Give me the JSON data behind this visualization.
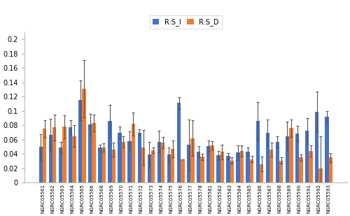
{
  "categories": [
    "NGRC05561",
    "NGRC05562",
    "NGRC05563",
    "NGRC05564",
    "NGRC05565",
    "NGRC05566",
    "NGRC05568",
    "NGRC05569",
    "NGRC05570",
    "NGRC05571",
    "NGRC05572",
    "NGRC05573",
    "NGRC05574",
    "NGRC05575",
    "NGRC05576",
    "NGRC05577",
    "NGRC05578",
    "NGRC05581",
    "NGRC05582",
    "NGRC05583",
    "NGRC05584",
    "NGRC05585",
    "NGRC05586",
    "NGRC05587",
    "NGRC05588",
    "NGRC05589",
    "NGRC05590",
    "NGRC05591",
    "NGRC05592",
    "NGRC05593"
  ],
  "RS_I": [
    0.05,
    0.067,
    0.049,
    0.077,
    0.115,
    0.081,
    0.049,
    0.086,
    0.07,
    0.058,
    0.07,
    0.039,
    0.057,
    0.039,
    0.111,
    0.053,
    0.043,
    0.051,
    0.038,
    0.037,
    0.042,
    0.043,
    0.086,
    0.07,
    0.057,
    0.065,
    0.069,
    0.072,
    0.099,
    0.092
  ],
  "RS_D": [
    0.075,
    0.077,
    0.078,
    0.065,
    0.131,
    0.083,
    0.049,
    0.046,
    0.057,
    0.082,
    0.049,
    0.045,
    0.056,
    0.047,
    0.033,
    0.062,
    0.036,
    0.052,
    0.043,
    0.031,
    0.044,
    0.033,
    0.026,
    0.046,
    0.031,
    0.076,
    0.035,
    0.044,
    0.02,
    0.035
  ],
  "RS_I_err": [
    0.018,
    0.022,
    0.008,
    0.01,
    0.028,
    0.015,
    0.004,
    0.022,
    0.008,
    0.013,
    0.004,
    0.018,
    0.015,
    0.01,
    0.008,
    0.035,
    0.008,
    0.008,
    0.006,
    0.004,
    0.01,
    0.006,
    0.026,
    0.018,
    0.008,
    0.02,
    0.01,
    0.018,
    0.028,
    0.008
  ],
  "RS_D_err": [
    0.012,
    0.018,
    0.016,
    0.015,
    0.04,
    0.012,
    0.006,
    0.01,
    0.008,
    0.016,
    0.024,
    0.004,
    0.008,
    0.012,
    0.0,
    0.025,
    0.004,
    0.006,
    0.01,
    0.004,
    0.008,
    0.004,
    0.01,
    0.01,
    0.004,
    0.012,
    0.004,
    0.008,
    0.045,
    0.006
  ],
  "color_I": "#4472c4",
  "color_D": "#ed7d31",
  "legend_I": "R:S_I",
  "legend_D": "R:S_D",
  "ylim": [
    0,
    0.21
  ],
  "yticks": [
    0,
    0.02,
    0.04,
    0.06,
    0.08,
    0.1,
    0.12,
    0.14,
    0.16,
    0.18,
    0.2
  ],
  "ytick_labels": [
    "0",
    "0.02",
    "0.04",
    "0.06",
    "0.08",
    "0.1",
    "0.12",
    "0.14",
    "0.16",
    "0.18",
    "0.2"
  ],
  "bar_width": 0.38,
  "figsize": [
    5.0,
    3.09
  ],
  "dpi": 100
}
